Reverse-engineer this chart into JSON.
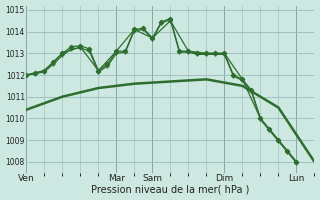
{
  "background_color": "#cce8e0",
  "grid_color": "#99bbbb",
  "line_color": "#2d6e2d",
  "xlabel": "Pression niveau de la mer( hPa )",
  "ylim": [
    1007.5,
    1015.2
  ],
  "yticks": [
    1008,
    1009,
    1010,
    1011,
    1012,
    1013,
    1014,
    1015
  ],
  "day_labels": [
    "Ven",
    "Mar",
    "Sam",
    "Dim",
    "Lun"
  ],
  "day_positions": [
    0,
    10,
    14,
    22,
    30
  ],
  "xlim": [
    0,
    32
  ],
  "vline_color": "#444444",
  "series": [
    {
      "x": [
        0,
        4,
        8,
        12,
        16,
        20,
        24,
        28,
        32
      ],
      "y": [
        1010.4,
        1011.0,
        1011.4,
        1011.6,
        1011.7,
        1011.8,
        1011.5,
        1010.5,
        1008.0
      ],
      "style": "-",
      "marker": null,
      "linewidth": 1.8,
      "zorder": 2
    },
    {
      "x": [
        0,
        1,
        2,
        3,
        4,
        5,
        6,
        7,
        8,
        9,
        10,
        11,
        12,
        13,
        14,
        15,
        16,
        17,
        18,
        19,
        20,
        21,
        22,
        23,
        24,
        25,
        26,
        27,
        28,
        29,
        30
      ],
      "y": [
        1012.0,
        1012.1,
        1012.2,
        1012.6,
        1013.0,
        1013.3,
        1013.35,
        1013.2,
        1012.2,
        1012.5,
        1013.1,
        1013.1,
        1014.1,
        1014.15,
        1013.7,
        1014.45,
        1014.6,
        1013.1,
        1013.1,
        1013.0,
        1013.0,
        1013.0,
        1013.0,
        1012.0,
        1011.8,
        1011.3,
        1010.0,
        1009.5,
        1009.0,
        1008.5,
        1008.0
      ],
      "style": "-",
      "marker": "D",
      "markersize": 2.2,
      "linewidth": 0.9,
      "zorder": 3
    },
    {
      "x": [
        0,
        1,
        2,
        3,
        4,
        5,
        6,
        7,
        8,
        9,
        10,
        11,
        12,
        13,
        14,
        15,
        16,
        17,
        18,
        19,
        20,
        21,
        22,
        23,
        24,
        25,
        26,
        27,
        28,
        29,
        30
      ],
      "y": [
        1012.0,
        1012.05,
        1012.15,
        1012.5,
        1012.9,
        1013.2,
        1013.25,
        1013.1,
        1012.15,
        1012.4,
        1013.0,
        1013.05,
        1014.05,
        1014.1,
        1013.65,
        1014.4,
        1014.55,
        1013.05,
        1013.05,
        1012.95,
        1012.95,
        1012.95,
        1012.95,
        1011.95,
        1011.75,
        1011.25,
        1009.95,
        1009.45,
        1008.95,
        1008.45,
        1007.95
      ],
      "style": "-",
      "marker": "+",
      "markersize": 3.5,
      "linewidth": 0.9,
      "zorder": 3
    },
    {
      "x": [
        0,
        2,
        4,
        6,
        8,
        10,
        12,
        14,
        16,
        18,
        20,
        22,
        24,
        26,
        28,
        30
      ],
      "y": [
        1012.0,
        1012.2,
        1013.0,
        1013.3,
        1012.2,
        1013.1,
        1014.1,
        1013.7,
        1014.5,
        1013.1,
        1013.0,
        1013.0,
        1011.8,
        1010.0,
        1009.0,
        1008.0
      ],
      "style": "-",
      "marker": "+",
      "markersize": 3.5,
      "linewidth": 0.9,
      "zorder": 3
    }
  ]
}
